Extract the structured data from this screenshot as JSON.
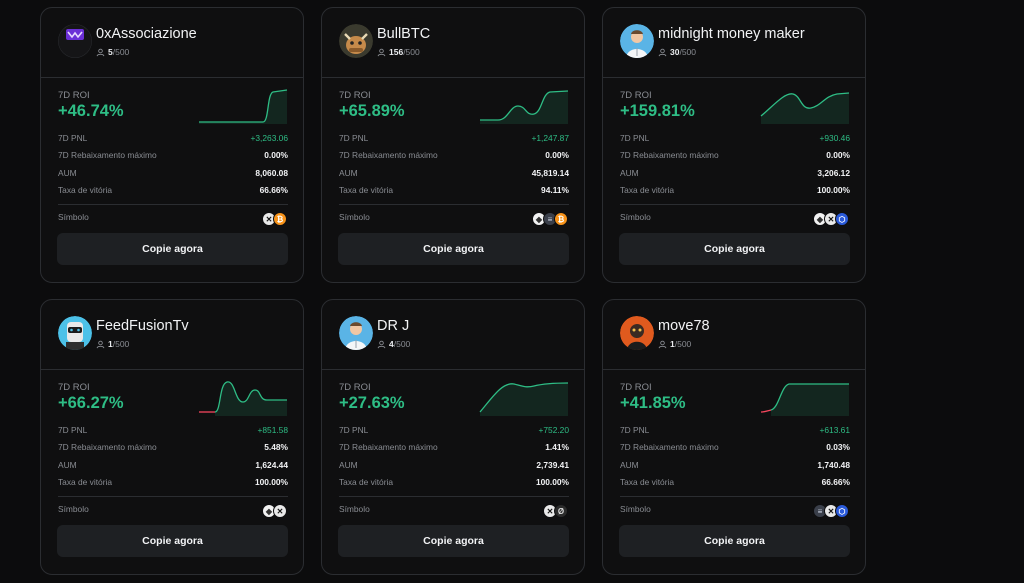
{
  "labels": {
    "roi": "7D ROI",
    "pnl": "7D PNL",
    "drawdown": "7D Rebaixamento máximo",
    "aum": "AUM",
    "win_rate": "Taxa de vitória",
    "symbol": "Símbolo",
    "copy_button": "Copie agora",
    "max_copiers": "/500"
  },
  "colors": {
    "positive": "#2ebd85",
    "negative": "#f6465d",
    "card_border": "#2b2d31",
    "button_bg": "#1e2023"
  },
  "cards": [
    {
      "name": "0xAssociazione",
      "copiers": "5",
      "roi": "+46.74%",
      "pnl": "+3,263.06",
      "drawdown": "0.00%",
      "aum": "8,060.08",
      "win_rate": "66.66%",
      "coins": [
        "x-token-icon",
        "btc-icon"
      ],
      "avatar": "purple-logo-avatar"
    },
    {
      "name": "BullBTC",
      "copiers": "156",
      "roi": "+65.89%",
      "pnl": "+1,247.87",
      "drawdown": "0.00%",
      "aum": "45,819.14",
      "win_rate": "94.11%",
      "coins": [
        "eth-icon",
        "ena-icon",
        "btc-icon"
      ],
      "avatar": "bull-avatar"
    },
    {
      "name": "midnight money maker",
      "copiers": "30",
      "roi": "+159.81%",
      "pnl": "+930.46",
      "drawdown": "0.00%",
      "aum": "3,206.12",
      "win_rate": "100.00%",
      "coins": [
        "eth-icon",
        "x-token-icon",
        "link-icon"
      ],
      "avatar": "doctor-avatar"
    },
    {
      "name": "FeedFusionTv",
      "copiers": "1",
      "roi": "+66.27%",
      "pnl": "+851.58",
      "drawdown": "5.48%",
      "aum": "1,624.44",
      "win_rate": "100.00%",
      "coins": [
        "eth-icon",
        "x-token-icon"
      ],
      "avatar": "robot-avatar"
    },
    {
      "name": "DR J",
      "copiers": "4",
      "roi": "+27.63%",
      "pnl": "+752.20",
      "drawdown": "1.41%",
      "aum": "2,739.41",
      "win_rate": "100.00%",
      "coins": [
        "x-token-icon",
        "sei-icon"
      ],
      "avatar": "doctor-avatar"
    },
    {
      "name": "move78",
      "copiers": "1",
      "roi": "+41.85%",
      "pnl": "+613.61",
      "drawdown": "0.03%",
      "aum": "1,740.48",
      "win_rate": "66.66%",
      "coins": [
        "ena-icon",
        "x-token-icon",
        "link-icon"
      ],
      "avatar": "dark-figure-avatar"
    }
  ]
}
